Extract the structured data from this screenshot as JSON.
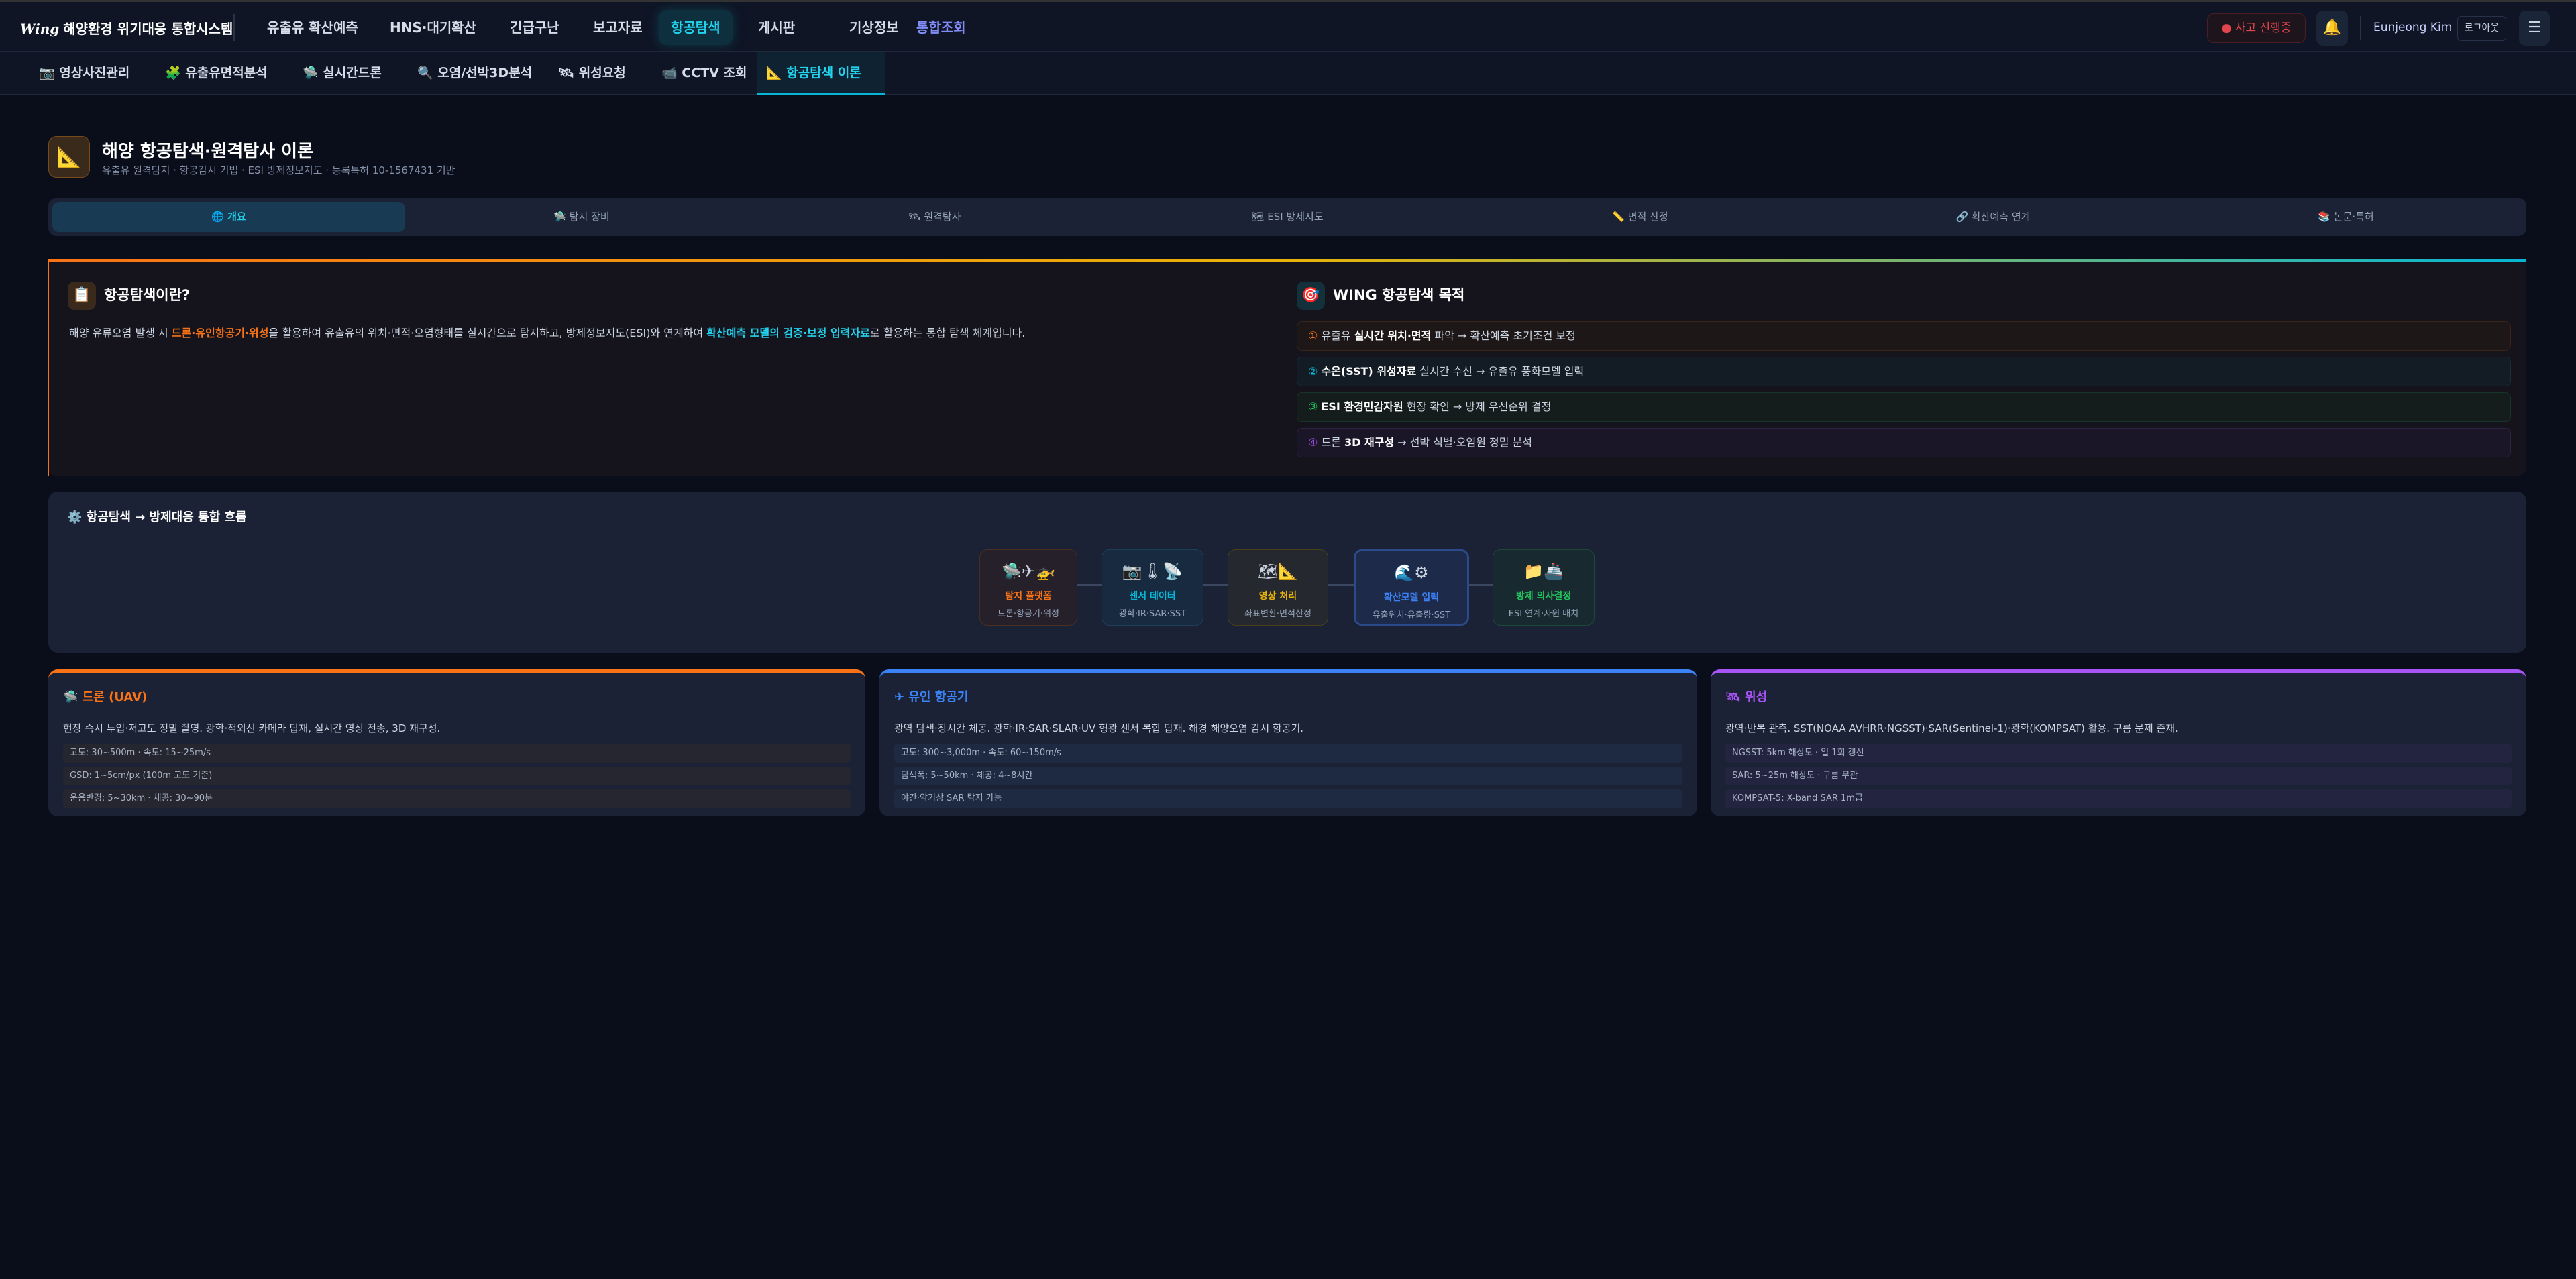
{
  "header": {
    "logo_mark": "Wing",
    "title": "해양환경 위기대응 통합시스템",
    "nav": [
      "유출유 확산예측",
      "HNS·대기확산",
      "긴급구난",
      "보고자료",
      "항공탐색",
      "게시판",
      "기상정보",
      "통합조회"
    ],
    "incident_badge": "● 사고 진행중",
    "bell_icon": "🔔",
    "user": "Eunjeong Kim",
    "logout": "로그아웃",
    "menu_icon": "☰"
  },
  "subnav": [
    {
      "icon": "📷",
      "label": "영상사진관리"
    },
    {
      "icon": "🧩",
      "label": "유출유면적분석"
    },
    {
      "icon": "🛸",
      "label": "실시간드론"
    },
    {
      "icon": "🔍",
      "label": "오염/선박3D분석"
    },
    {
      "icon": "🛰",
      "label": "위성요청"
    },
    {
      "icon": "📹",
      "label": "CCTV 조회"
    },
    {
      "icon": "📐",
      "label": "항공탐색 이론"
    }
  ],
  "page": {
    "icon": "📐",
    "title": "해양 항공탐색·원격탐사 이론",
    "subtitle": "유출유 원격탐지 · 항공감시 기법 · ESI 방제정보지도 · 등록특허 10-1567431 기반"
  },
  "tabs": [
    {
      "icon": "🌐",
      "label": "개요"
    },
    {
      "icon": "🛸",
      "label": "탐지 장비"
    },
    {
      "icon": "🛰",
      "label": "원격탐사"
    },
    {
      "icon": "🗺",
      "label": "ESI 방제지도"
    },
    {
      "icon": "📏",
      "label": "면적 산정"
    },
    {
      "icon": "🔗",
      "label": "확산예측 연계"
    },
    {
      "icon": "📚",
      "label": "논문·특허"
    }
  ],
  "overview": {
    "icon": "📋",
    "title": "항공탐색이란?",
    "intro": {
      "a": "해양 유류오염 발생 시 ",
      "b": "드론·유인항공기·위성",
      "c": "을 활용하여 유출유의 위치·면적·오염형태를 실시간으로 탐지하고, 방제정보지도(ESI)와 연계하여 ",
      "d": "확산예측 모델의 검증·보정 입력자료",
      "e": "로 활용하는 통합 탐색 체계입니다."
    },
    "goal_icon": "🎯",
    "goal_title": "WING 항공탐색 목적",
    "goals": [
      {
        "num": "①",
        "bold": "실시간 위치·면적",
        "pre": "유출유 ",
        "post": " 파악 → 확산예측 초기조건 보정",
        "color": "#f97316"
      },
      {
        "num": "②",
        "bold": "수온(SST) 위성자료",
        "pre": "",
        "post": " 실시간 수신 → 유출유 풍화모델 입력",
        "color": "#06b6d4"
      },
      {
        "num": "③",
        "bold": "ESI 환경민감자원",
        "pre": "",
        "post": " 현장 확인 → 방제 우선순위 결정",
        "color": "#22c55e"
      },
      {
        "num": "④",
        "bold": "3D 재구성",
        "pre": "드론 ",
        "post": " → 선박 식별·오염원 정밀 분석",
        "color": "#a855f7"
      }
    ]
  },
  "flow": {
    "icon": "⚙️",
    "title": "항공탐색 → 방제대응 통합 흐름",
    "steps": [
      {
        "icons": "🛸✈🚁",
        "title": "탐지 플랫폼",
        "sub": "드론·항공기·위성",
        "color": "#f97316"
      },
      {
        "icons": "📷🌡📡",
        "title": "센서 데이터",
        "sub": "광학·IR·SAR·SST",
        "color": "#06b6d4"
      },
      {
        "icons": "🗺📐",
        "title": "영상 처리",
        "sub": "좌표변환·면적산정",
        "color": "#eab308"
      },
      {
        "icons": "🌊⚙",
        "title": "확산모델 입력",
        "sub": "유출위치·유출량·SST",
        "color": "#3b82f6"
      },
      {
        "icons": "📁🚢",
        "title": "방제 의사결정",
        "sub": "ESI 연계·자원 배치",
        "color": "#22c55e"
      }
    ]
  },
  "platforms": [
    {
      "icon": "🛸",
      "title": "드론 (UAV)",
      "color": "#f97316",
      "desc": "현장 즉시 투입·저고도 정밀 촬영. 광학·적외선 카메라 탑재, 실시간 영상 전송, 3D 재구성.",
      "specs": [
        "고도: 30~500m · 속도: 15~25m/s",
        "GSD: 1~5cm/px (100m 고도 기준)",
        "운용반경: 5~30km · 체공: 30~90분"
      ]
    },
    {
      "icon": "✈",
      "title": "유인 항공기",
      "color": "#3b82f6",
      "desc": "광역 탐색·장시간 체공. 광학·IR·SAR·SLAR·UV 형광 센서 복합 탑재. 해경 해양오염 감시 항공기.",
      "specs": [
        "고도: 300~3,000m · 속도: 60~150m/s",
        "탐색폭: 5~50km · 체공: 4~8시간",
        "야간·악기상 SAR 탐지 가능"
      ]
    },
    {
      "icon": "🛰",
      "title": "위성",
      "color": "#a855f7",
      "desc": "광역·반복 관측. SST(NOAA AVHRR·NGSST)·SAR(Sentinel-1)·광학(KOMPSAT) 활용. 구름 문제 존재.",
      "specs": [
        "NGSST: 5km 해상도 · 일 1회 갱신",
        "SAR: 5~25m 해상도 · 구름 무관",
        "KOMPSAT-5: X-band SAR 1m급"
      ]
    }
  ]
}
